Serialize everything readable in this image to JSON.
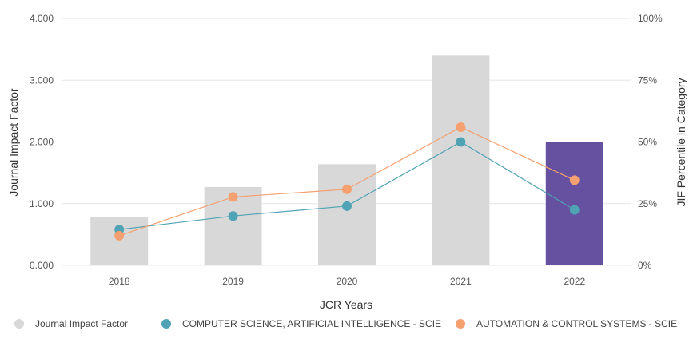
{
  "chart_data": {
    "type": "bar",
    "categories": [
      "2018",
      "2019",
      "2020",
      "2021",
      "2022"
    ],
    "xlabel": "JCR Years",
    "ylabel": "Journal Impact Factor",
    "y2label": "JIF Percentile in Category",
    "ylim": [
      0,
      4
    ],
    "y2lim": [
      0,
      100
    ],
    "yticks": [
      "0.000",
      "1.000",
      "2.000",
      "3.000",
      "4.000"
    ],
    "y2ticks": [
      "0%",
      "25%",
      "50%",
      "75%",
      "100%"
    ],
    "grid": true,
    "legend_position": "bottom",
    "series": [
      {
        "name": "Journal Impact Factor",
        "type": "bar",
        "axis": "left",
        "values": [
          0.78,
          1.27,
          1.64,
          3.4,
          2.0
        ],
        "color": "#d8d8d8",
        "highlight_color": "#6650a0",
        "highlight_category": "2022"
      },
      {
        "name": "COMPUTER SCIENCE, ARTIFICIAL INTELLIGENCE - SCIE",
        "type": "line",
        "axis": "right",
        "values": [
          14.5,
          20.0,
          24.0,
          50.0,
          22.5
        ],
        "color": "#4fa3b5"
      },
      {
        "name": "AUTOMATION & CONTROL SYSTEMS - SCIE",
        "type": "line",
        "axis": "right",
        "values": [
          12.0,
          27.7,
          30.8,
          56.0,
          34.5
        ],
        "color": "#f4a071"
      }
    ]
  }
}
